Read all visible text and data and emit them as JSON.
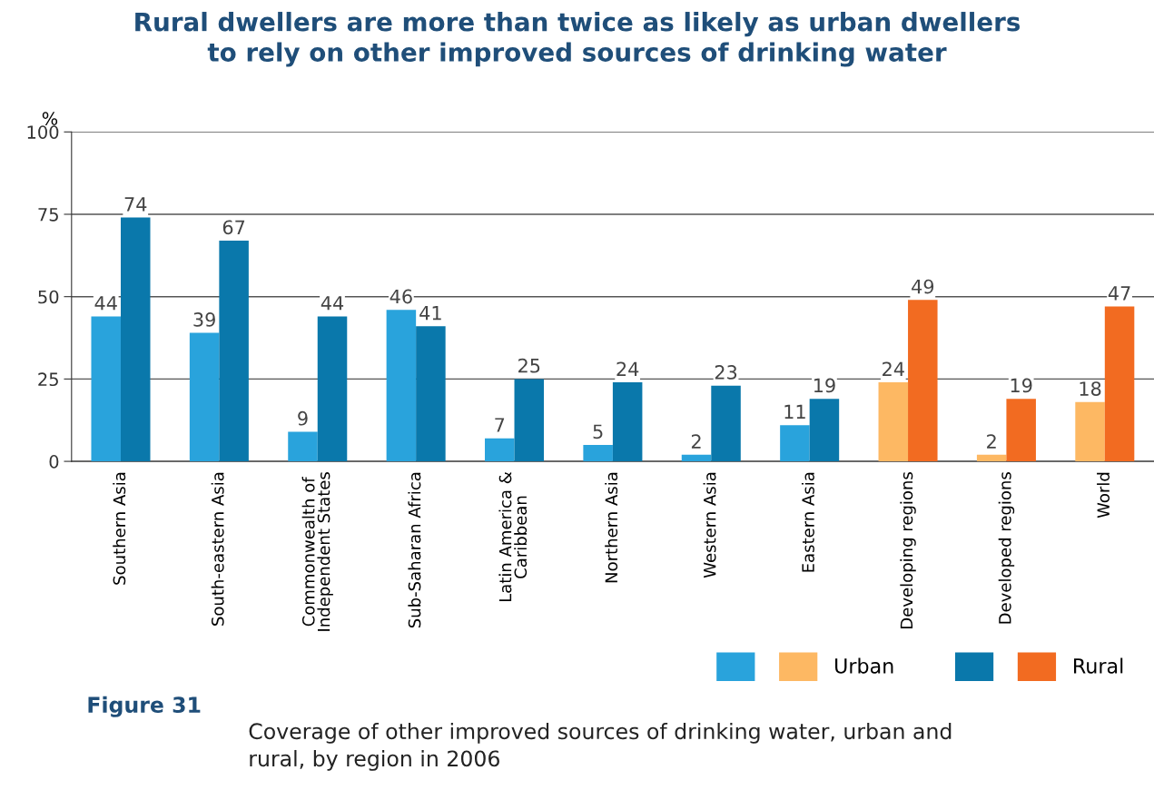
{
  "chart_data": {
    "type": "bar",
    "title": "Rural dwellers are more than twice as likely as urban dwellers\nto rely on other improved sources of drinking water",
    "ylabel": "%",
    "categories": [
      "Southern Asia",
      "South-eastern Asia",
      "Commonwealth of\nIndependent States",
      "Sub-Saharan Africa",
      "Latin America &\nCaribbean",
      "Northern Asia",
      "Western Asia",
      "Eastern Asia",
      "Developing regions",
      "Developed regions",
      "World"
    ],
    "series": [
      {
        "name": "Urban",
        "color": "#29a3dc",
        "colors": [
          "#29a3dc",
          "#29a3dc",
          "#29a3dc",
          "#29a3dc",
          "#29a3dc",
          "#29a3dc",
          "#29a3dc",
          "#29a3dc",
          "#fdb863",
          "#fdb863",
          "#fdb863"
        ],
        "values": [
          44,
          39,
          9,
          46,
          7,
          5,
          2,
          11,
          24,
          2,
          18
        ]
      },
      {
        "name": "Rural",
        "color": "#0a78ab",
        "colors": [
          "#0a78ab",
          "#0a78ab",
          "#0a78ab",
          "#0a78ab",
          "#0a78ab",
          "#0a78ab",
          "#0a78ab",
          "#0a78ab",
          "#f26b21",
          "#f26b21",
          "#f26b21"
        ],
        "values": [
          74,
          67,
          44,
          41,
          25,
          24,
          23,
          19,
          49,
          19,
          47
        ]
      }
    ],
    "ylim": [
      0,
      100
    ],
    "yticks": [
      0,
      25,
      50,
      75,
      100
    ],
    "grid": "y",
    "data_labels": true,
    "legend": "bottom right",
    "annotations": [
      "Figure 31",
      "Coverage of other improved sources of drinking water, urban and\nrural, by region in 2006"
    ]
  }
}
